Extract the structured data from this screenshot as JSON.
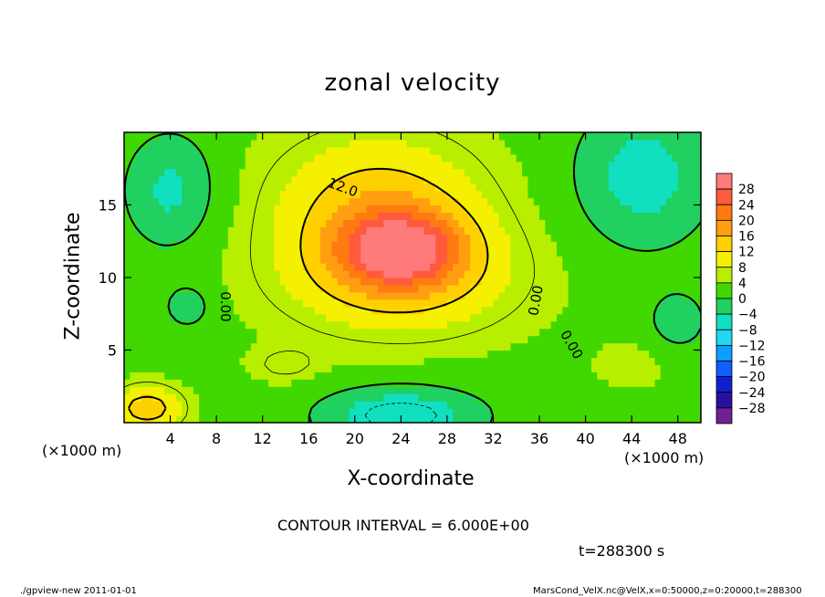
{
  "chart_data": {
    "type": "heatmap",
    "title": "zonal velocity",
    "xlabel": "X-coordinate",
    "ylabel": "Z-coordinate",
    "x_unit_label": "(×1000 m)",
    "y_unit_label": "(×1000 m)",
    "x_ticks": [
      4,
      8,
      12,
      16,
      20,
      24,
      28,
      32,
      36,
      40,
      44,
      48
    ],
    "y_ticks": [
      5,
      10,
      15
    ],
    "xlim": [
      0,
      50
    ],
    "ylim": [
      0,
      20
    ],
    "colorbar_levels": [
      28,
      24,
      20,
      16,
      12,
      8,
      4,
      0,
      -4,
      -8,
      -12,
      -16,
      -20,
      -24,
      -28
    ],
    "colorbar_colors": [
      "#ff7a7a",
      "#ff5a3c",
      "#ff7a10",
      "#ff9e10",
      "#ffd000",
      "#f4f000",
      "#b8ee00",
      "#40d800",
      "#20d060",
      "#10e0c0",
      "#20d8f0",
      "#0aa0ff",
      "#1060ff",
      "#1020d0",
      "#2810a0",
      "#702090"
    ],
    "contour_labels": [
      "12.0",
      "0.00",
      "0.00",
      "0.00"
    ],
    "contour_interval_text": "CONTOUR INTERVAL = 6.000E+00",
    "time_text": "t=288300 s",
    "footer_left": "./gpview-new   2011-01-01",
    "footer_right": "MarsCond_VelX.nc@VelX,x=0:50000,z=0:20000,t=288300",
    "field_blobs": [
      {
        "x": 24,
        "z": 12,
        "v": 19,
        "sx": 5,
        "sz": 2.5
      },
      {
        "x": 22,
        "z": 15,
        "v": 11,
        "sx": 9,
        "sz": 5
      },
      {
        "x": 24,
        "z": 10,
        "v": 10,
        "sx": 10,
        "sz": 4
      },
      {
        "x": 2,
        "z": 1,
        "v": 12,
        "sx": 3,
        "sz": 1.5
      },
      {
        "x": 45,
        "z": 17,
        "v": -9,
        "sx": 6,
        "sz": 5
      },
      {
        "x": 4,
        "z": 16,
        "v": -8,
        "sx": 4,
        "sz": 4
      },
      {
        "x": 24,
        "z": 0.5,
        "v": -11,
        "sx": 7,
        "sz": 2
      },
      {
        "x": 5.5,
        "z": 8,
        "v": -6,
        "sx": 2,
        "sz": 1.5
      },
      {
        "x": 48,
        "z": 7,
        "v": -6,
        "sx": 2.5,
        "sz": 2
      },
      {
        "x": 14,
        "z": 4,
        "v": 4,
        "sx": 3,
        "sz": 1.2
      },
      {
        "x": 44,
        "z": 4,
        "v": 2,
        "sx": 4,
        "sz": 2
      }
    ]
  },
  "captions": {
    "title": "zonal velocity",
    "xlabel": "X-coordinate",
    "ylabel": "Z-coordinate",
    "x_unit": "(×1000 m)",
    "y_unit": "(×1000 m)",
    "contour_interval": "CONTOUR INTERVAL = 6.000E+00",
    "time": "t=288300 s",
    "footer_left": "./gpview-new   2011-01-01",
    "footer_right": "MarsCond_VelX.nc@VelX,x=0:50000,z=0:20000,t=288300"
  }
}
